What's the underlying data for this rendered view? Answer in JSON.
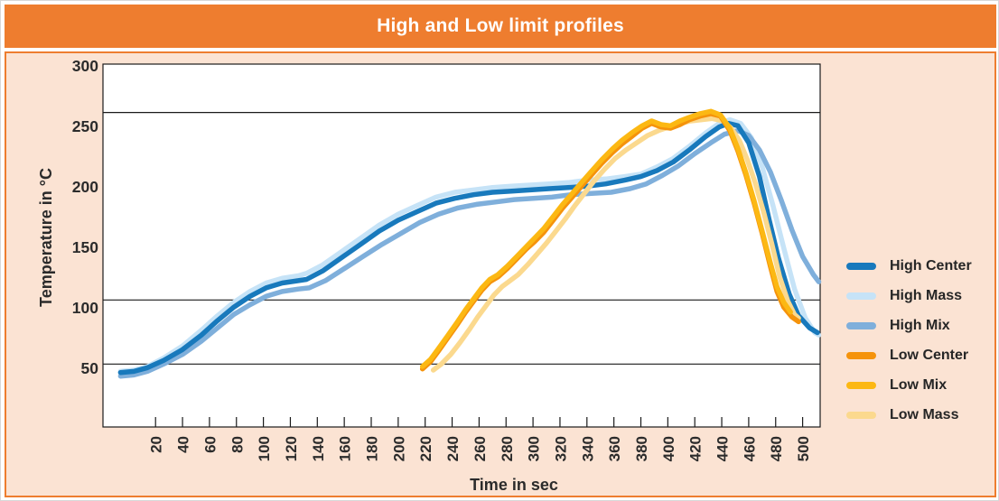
{
  "colors": {
    "header_bg": "#EE7D2F",
    "header_text": "#FFFFFF",
    "body_bg": "#FBE3D3",
    "body_border": "#EE7D2F",
    "plot_bg": "#FFFFFF",
    "axis_line": "#1A1A1A",
    "tick_text": "#2B2B2B"
  },
  "chart_data": {
    "type": "line",
    "title": "High and Low limit profiles",
    "xlabel": "Time in sec",
    "ylabel": "Temperature in °C",
    "xlim": [
      -19,
      513
    ],
    "ylim": [
      0,
      300
    ],
    "x_ticks": [
      20,
      40,
      60,
      80,
      100,
      120,
      140,
      160,
      180,
      200,
      220,
      240,
      260,
      280,
      300,
      320,
      340,
      360,
      380,
      400,
      420,
      440,
      460,
      480,
      500
    ],
    "y_ticks": [
      50,
      100,
      150,
      200,
      250,
      300
    ],
    "grid": "off",
    "limit_lines": [
      260,
      105,
      52
    ],
    "legend_position": "right",
    "series": [
      {
        "name": "High Center",
        "color": "#1879BC",
        "points": [
          [
            -6,
            45
          ],
          [
            4,
            46
          ],
          [
            14,
            49
          ],
          [
            26,
            55
          ],
          [
            40,
            64
          ],
          [
            54,
            76
          ],
          [
            66,
            88
          ],
          [
            78,
            99
          ],
          [
            90,
            108
          ],
          [
            102,
            115
          ],
          [
            114,
            119
          ],
          [
            126,
            121
          ],
          [
            132,
            122
          ],
          [
            144,
            129
          ],
          [
            158,
            140
          ],
          [
            172,
            151
          ],
          [
            186,
            162
          ],
          [
            200,
            171
          ],
          [
            214,
            178
          ],
          [
            228,
            185
          ],
          [
            242,
            189
          ],
          [
            256,
            192
          ],
          [
            270,
            194
          ],
          [
            284,
            195
          ],
          [
            298,
            196
          ],
          [
            312,
            197
          ],
          [
            326,
            198
          ],
          [
            340,
            199
          ],
          [
            354,
            201
          ],
          [
            368,
            204
          ],
          [
            380,
            207
          ],
          [
            392,
            212
          ],
          [
            404,
            219
          ],
          [
            416,
            229
          ],
          [
            428,
            240
          ],
          [
            438,
            248
          ],
          [
            445,
            251
          ],
          [
            452,
            249
          ],
          [
            460,
            235
          ],
          [
            468,
            207
          ],
          [
            475,
            172
          ],
          [
            482,
            140
          ],
          [
            490,
            110
          ],
          [
            497,
            92
          ],
          [
            505,
            82
          ],
          [
            511,
            78
          ]
        ]
      },
      {
        "name": "High Mass",
        "color": "#C6E3F7",
        "points": [
          [
            -6,
            46
          ],
          [
            4,
            47
          ],
          [
            14,
            50
          ],
          [
            26,
            57
          ],
          [
            40,
            67
          ],
          [
            54,
            80
          ],
          [
            66,
            92
          ],
          [
            78,
            103
          ],
          [
            90,
            112
          ],
          [
            102,
            119
          ],
          [
            114,
            123
          ],
          [
            126,
            125
          ],
          [
            132,
            127
          ],
          [
            144,
            134
          ],
          [
            158,
            145
          ],
          [
            172,
            156
          ],
          [
            186,
            167
          ],
          [
            200,
            176
          ],
          [
            214,
            183
          ],
          [
            228,
            190
          ],
          [
            242,
            194
          ],
          [
            256,
            196
          ],
          [
            270,
            198
          ],
          [
            284,
            199
          ],
          [
            298,
            200
          ],
          [
            312,
            201
          ],
          [
            326,
            202
          ],
          [
            340,
            204
          ],
          [
            354,
            205
          ],
          [
            368,
            207
          ],
          [
            380,
            209
          ],
          [
            392,
            215
          ],
          [
            404,
            222
          ],
          [
            416,
            232
          ],
          [
            428,
            243
          ],
          [
            438,
            251
          ],
          [
            446,
            254
          ],
          [
            454,
            251
          ],
          [
            462,
            239
          ],
          [
            470,
            215
          ],
          [
            478,
            183
          ],
          [
            486,
            148
          ],
          [
            494,
            114
          ],
          [
            502,
            90
          ],
          [
            509,
            78
          ],
          [
            512,
            76
          ]
        ]
      },
      {
        "name": "High Mix",
        "color": "#7FAFDB",
        "points": [
          [
            -6,
            42
          ],
          [
            4,
            43
          ],
          [
            14,
            46
          ],
          [
            26,
            52
          ],
          [
            40,
            60
          ],
          [
            54,
            71
          ],
          [
            66,
            82
          ],
          [
            78,
            93
          ],
          [
            90,
            101
          ],
          [
            102,
            108
          ],
          [
            114,
            112
          ],
          [
            126,
            114
          ],
          [
            134,
            115
          ],
          [
            146,
            121
          ],
          [
            160,
            131
          ],
          [
            174,
            141
          ],
          [
            188,
            151
          ],
          [
            202,
            160
          ],
          [
            216,
            169
          ],
          [
            230,
            176
          ],
          [
            244,
            181
          ],
          [
            258,
            184
          ],
          [
            272,
            186
          ],
          [
            286,
            188
          ],
          [
            300,
            189
          ],
          [
            314,
            190
          ],
          [
            328,
            192
          ],
          [
            342,
            193
          ],
          [
            358,
            194
          ],
          [
            372,
            197
          ],
          [
            384,
            201
          ],
          [
            396,
            208
          ],
          [
            408,
            216
          ],
          [
            420,
            226
          ],
          [
            432,
            235
          ],
          [
            442,
            242
          ],
          [
            452,
            245
          ],
          [
            460,
            241
          ],
          [
            468,
            229
          ],
          [
            476,
            211
          ],
          [
            484,
            188
          ],
          [
            492,
            163
          ],
          [
            500,
            141
          ],
          [
            508,
            126
          ],
          [
            512,
            120
          ]
        ]
      },
      {
        "name": "Low Center",
        "color": "#F5930B",
        "points": [
          [
            218,
            48
          ],
          [
            224,
            54
          ],
          [
            230,
            63
          ],
          [
            237,
            74
          ],
          [
            244,
            85
          ],
          [
            250,
            95
          ],
          [
            256,
            104
          ],
          [
            262,
            113
          ],
          [
            268,
            120
          ],
          [
            274,
            124
          ],
          [
            281,
            131
          ],
          [
            288,
            139
          ],
          [
            295,
            147
          ],
          [
            301,
            153
          ],
          [
            308,
            161
          ],
          [
            315,
            171
          ],
          [
            322,
            181
          ],
          [
            329,
            190
          ],
          [
            336,
            199
          ],
          [
            343,
            208
          ],
          [
            351,
            218
          ],
          [
            359,
            227
          ],
          [
            366,
            234
          ],
          [
            373,
            240
          ],
          [
            381,
            247
          ],
          [
            388,
            251
          ],
          [
            395,
            248
          ],
          [
            402,
            247
          ],
          [
            409,
            250
          ],
          [
            416,
            254
          ],
          [
            424,
            257
          ],
          [
            432,
            259
          ],
          [
            439,
            257
          ],
          [
            446,
            245
          ],
          [
            452,
            228
          ],
          [
            458,
            208
          ],
          [
            464,
            185
          ],
          [
            470,
            160
          ],
          [
            476,
            133
          ],
          [
            481,
            112
          ],
          [
            486,
            99
          ],
          [
            492,
            91
          ],
          [
            497,
            87
          ]
        ]
      },
      {
        "name": "Low Mix",
        "color": "#FCB813",
        "points": [
          [
            218,
            50
          ],
          [
            224,
            56
          ],
          [
            230,
            65
          ],
          [
            237,
            76
          ],
          [
            244,
            87
          ],
          [
            250,
            97
          ],
          [
            256,
            106
          ],
          [
            262,
            115
          ],
          [
            268,
            122
          ],
          [
            274,
            126
          ],
          [
            281,
            133
          ],
          [
            288,
            141
          ],
          [
            295,
            149
          ],
          [
            301,
            156
          ],
          [
            308,
            164
          ],
          [
            315,
            174
          ],
          [
            322,
            184
          ],
          [
            329,
            193
          ],
          [
            336,
            202
          ],
          [
            343,
            211
          ],
          [
            351,
            221
          ],
          [
            359,
            230
          ],
          [
            366,
            237
          ],
          [
            373,
            243
          ],
          [
            381,
            249
          ],
          [
            388,
            253
          ],
          [
            395,
            250
          ],
          [
            402,
            249
          ],
          [
            409,
            253
          ],
          [
            416,
            256
          ],
          [
            424,
            259
          ],
          [
            432,
            261
          ],
          [
            439,
            258
          ],
          [
            446,
            247
          ],
          [
            452,
            230
          ],
          [
            458,
            210
          ],
          [
            464,
            187
          ],
          [
            470,
            162
          ],
          [
            476,
            136
          ],
          [
            481,
            116
          ],
          [
            486,
            103
          ],
          [
            491,
            95
          ]
        ]
      },
      {
        "name": "Low Mass",
        "color": "#FBD98E",
        "points": [
          [
            226,
            47
          ],
          [
            232,
            52
          ],
          [
            239,
            60
          ],
          [
            246,
            70
          ],
          [
            253,
            81
          ],
          [
            259,
            91
          ],
          [
            265,
            100
          ],
          [
            271,
            109
          ],
          [
            277,
            116
          ],
          [
            283,
            121
          ],
          [
            289,
            126
          ],
          [
            296,
            134
          ],
          [
            303,
            143
          ],
          [
            310,
            152
          ],
          [
            317,
            162
          ],
          [
            324,
            172
          ],
          [
            331,
            183
          ],
          [
            338,
            193
          ],
          [
            345,
            203
          ],
          [
            353,
            213
          ],
          [
            361,
            222
          ],
          [
            369,
            229
          ],
          [
            377,
            235
          ],
          [
            385,
            241
          ],
          [
            393,
            245
          ],
          [
            401,
            248
          ],
          [
            409,
            251
          ],
          [
            417,
            253
          ],
          [
            425,
            254
          ],
          [
            433,
            255
          ],
          [
            441,
            253
          ],
          [
            447,
            247
          ],
          [
            453,
            237
          ],
          [
            459,
            221
          ],
          [
            465,
            201
          ],
          [
            471,
            178
          ],
          [
            477,
            152
          ],
          [
            483,
            124
          ],
          [
            489,
            104
          ],
          [
            494,
            93
          ],
          [
            497,
            90
          ]
        ]
      }
    ]
  }
}
